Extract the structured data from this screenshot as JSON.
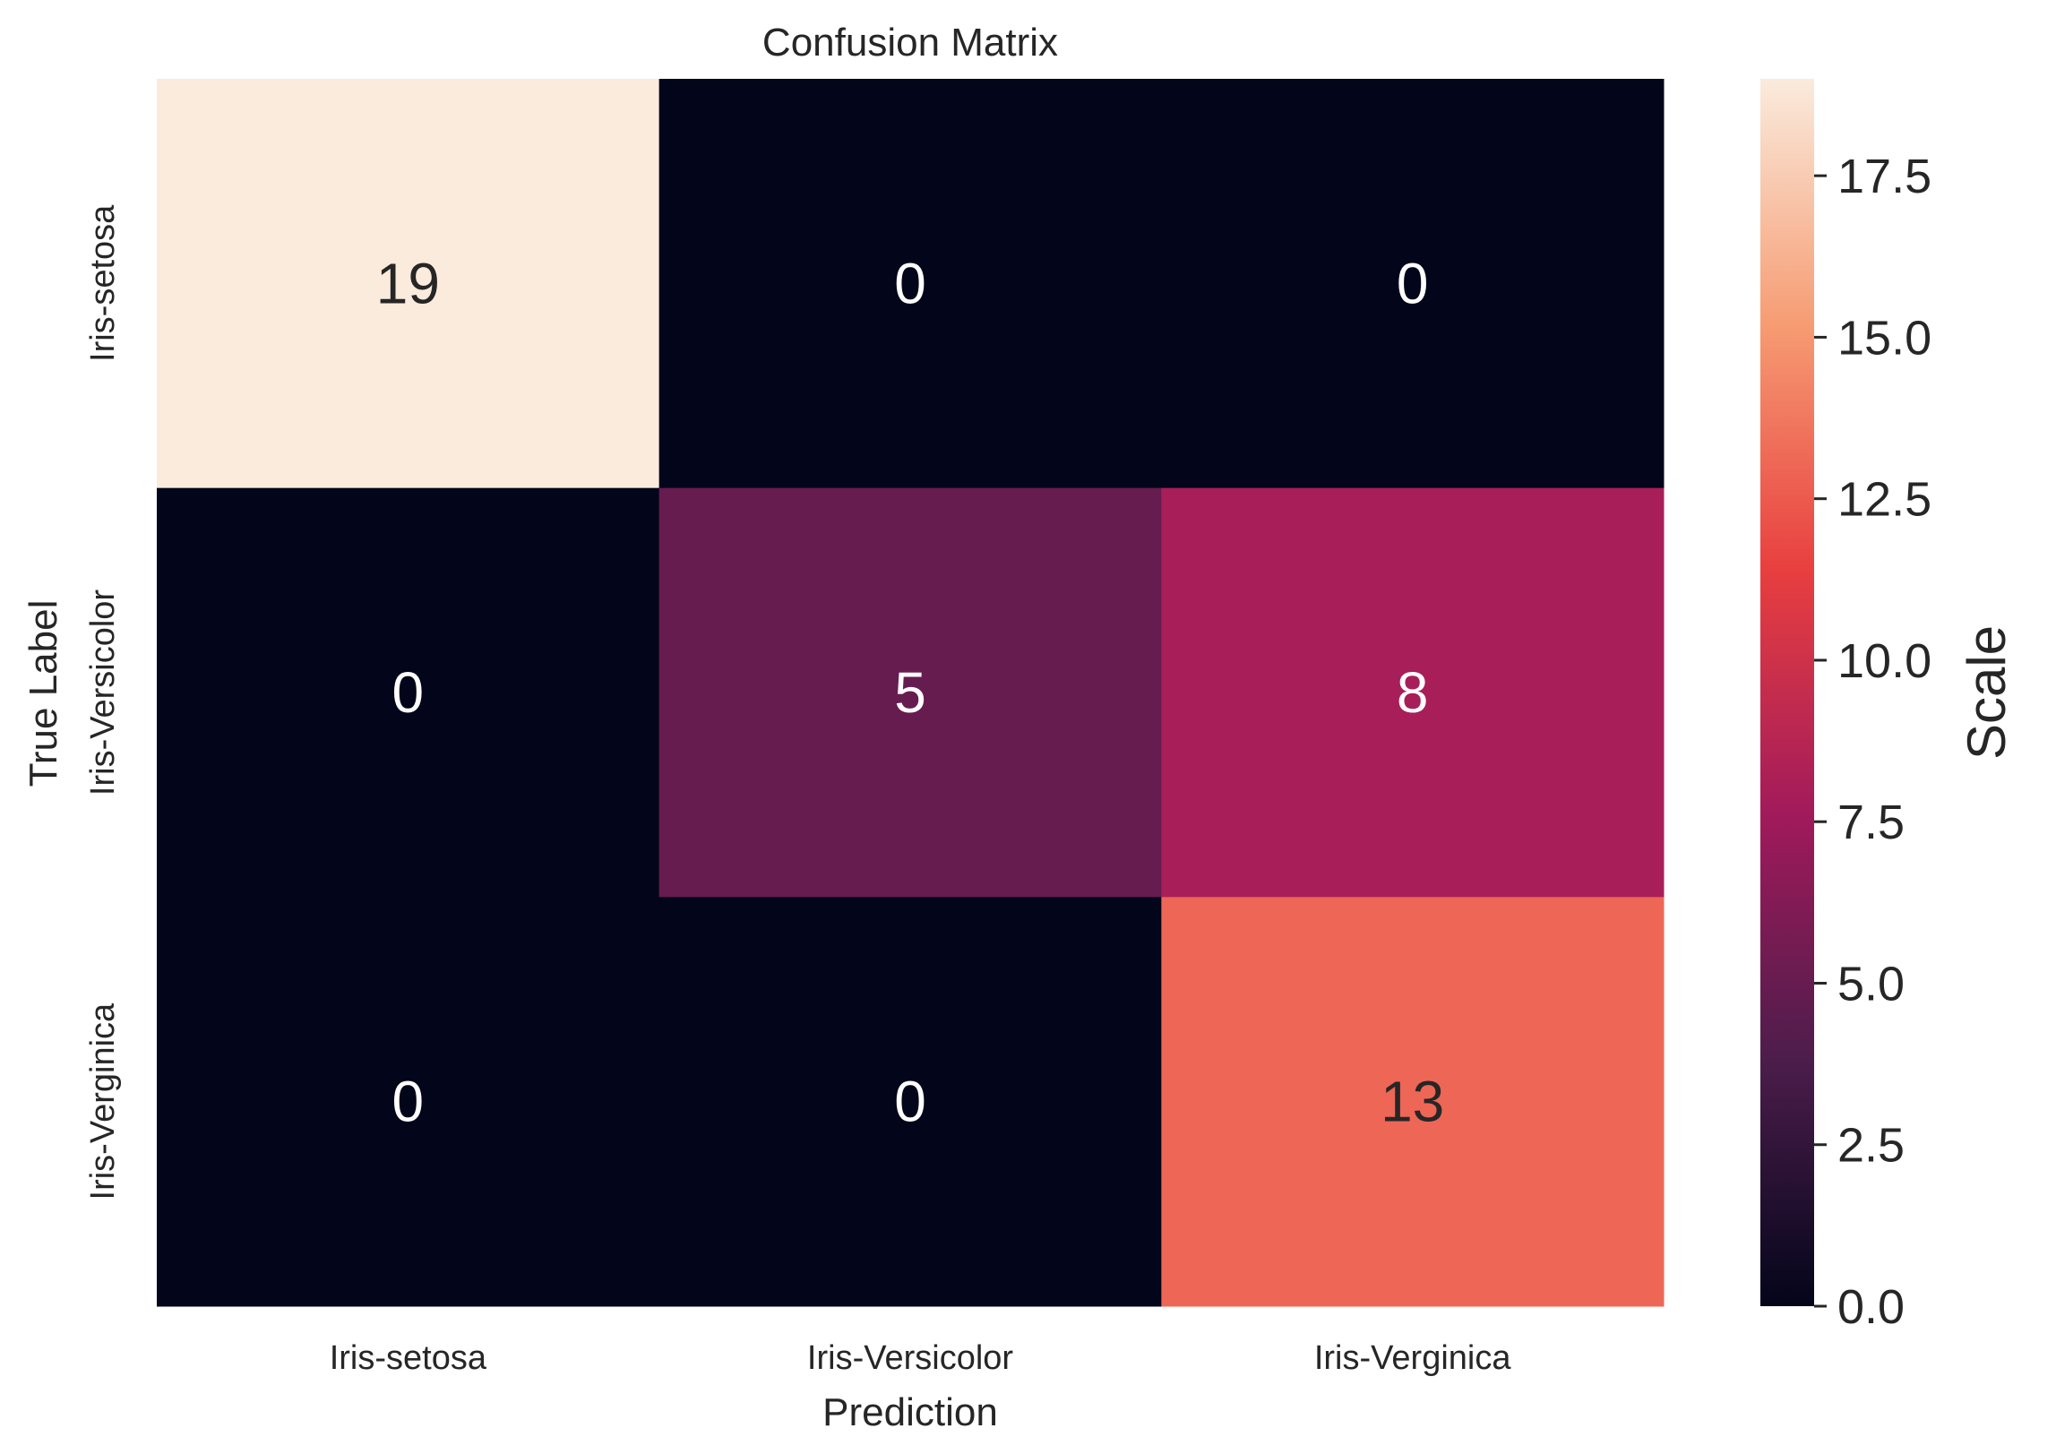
{
  "chart_data": {
    "type": "heatmap",
    "title": "Confusion Matrix",
    "xlabel": "Prediction",
    "ylabel": "True Label",
    "x_categories": [
      "Iris-setosa",
      "Iris-Versicolor",
      "Iris-Verginica"
    ],
    "y_categories": [
      "Iris-setosa",
      "Iris-Versicolor",
      "Iris-Verginica"
    ],
    "values": [
      [
        19,
        0,
        0
      ],
      [
        0,
        5,
        8
      ],
      [
        0,
        0,
        13
      ]
    ],
    "colorbar": {
      "label": "Scale",
      "range": [
        0,
        19
      ],
      "ticks": [
        0.0,
        2.5,
        5.0,
        7.5,
        10.0,
        12.5,
        15.0,
        17.5
      ],
      "tick_labels": [
        "0.0",
        "2.5",
        "5.0",
        "7.5",
        "10.0",
        "12.5",
        "15.0",
        "17.5"
      ],
      "colormap": [
        "#03051a",
        "#4c1d4b",
        "#a11a5b",
        "#e83f3f",
        "#f69c73",
        "#faebdd"
      ]
    },
    "grid": false
  }
}
